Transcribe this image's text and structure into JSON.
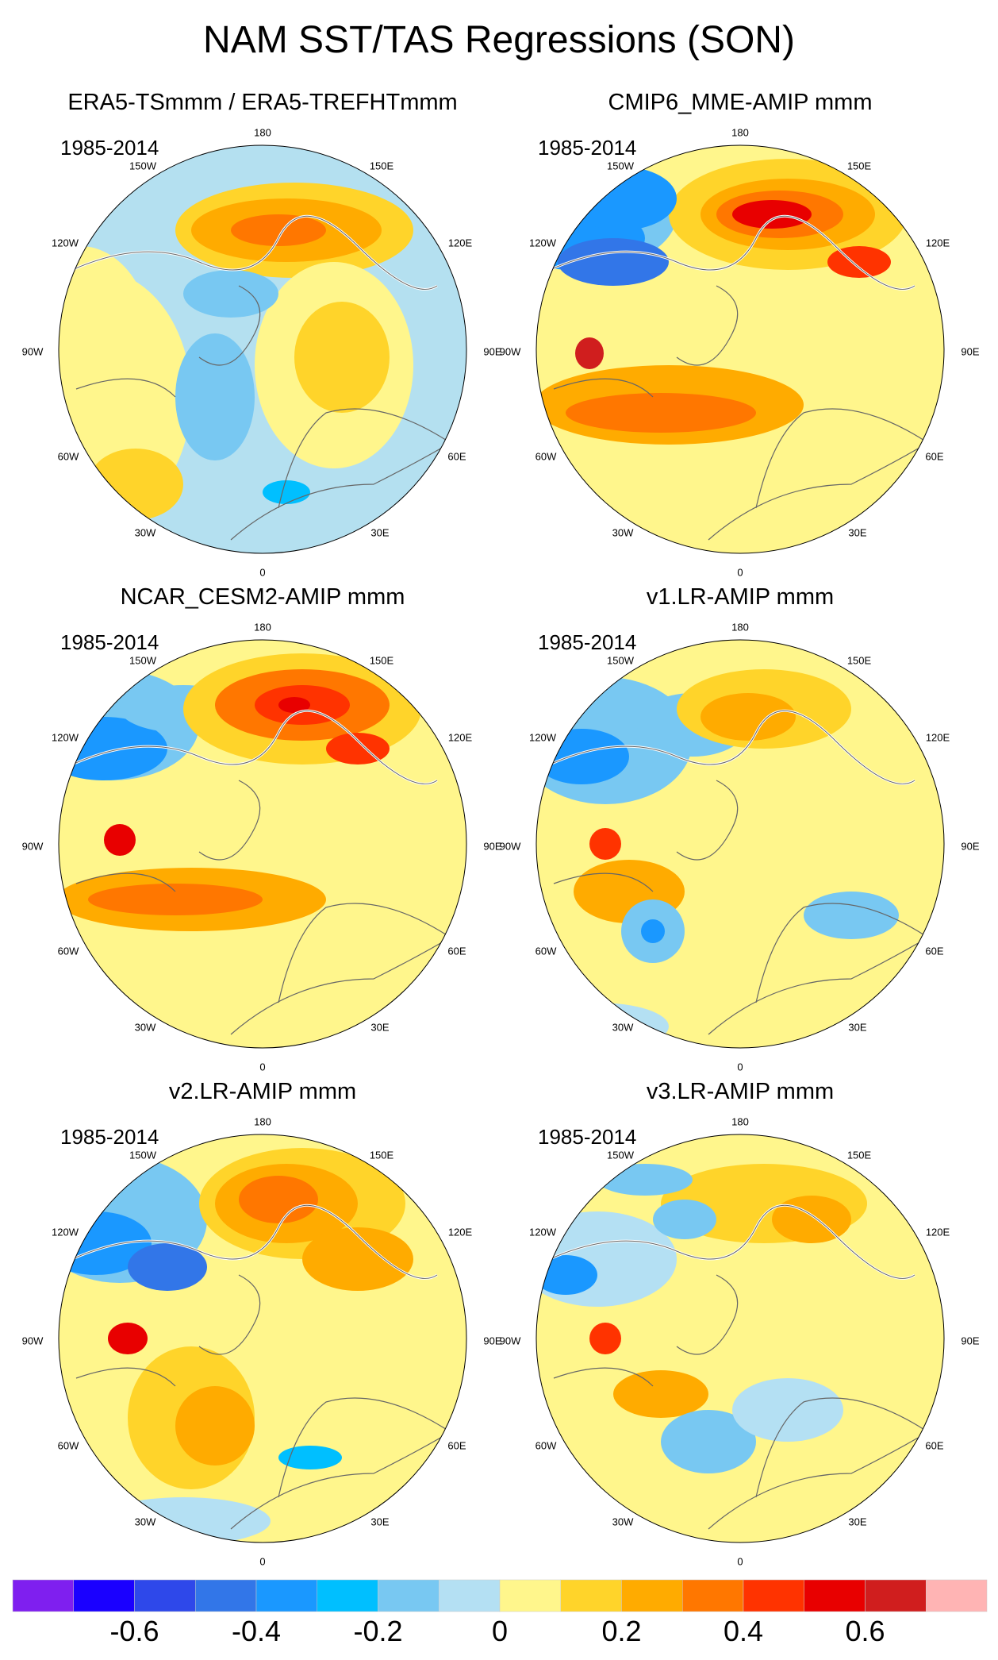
{
  "title": "NAM SST/TAS Regressions (SON)",
  "longitude_labels": [
    "180",
    "150W",
    "150E",
    "120W",
    "120E",
    "90W",
    "90E",
    "60W",
    "60E",
    "30W",
    "30E",
    "0"
  ],
  "panels": [
    {
      "title": "ERA5-TSmmm / ERA5-TREFHTmmm",
      "period": "1985-2014",
      "base_color": "#b4e0f0"
    },
    {
      "title": "CMIP6_MME-AMIP  mmm",
      "period": "1985-2014",
      "base_color": "#fff68c"
    },
    {
      "title": "NCAR_CESM2-AMIP  mmm",
      "period": "1985-2014",
      "base_color": "#fff68c"
    },
    {
      "title": "v1.LR-AMIP  mmm",
      "period": "1985-2014",
      "base_color": "#fff68c"
    },
    {
      "title": "v2.LR-AMIP  mmm",
      "period": "1985-2014",
      "base_color": "#fff68c"
    },
    {
      "title": "v3.LR-AMIP  mmm",
      "period": "1985-2014",
      "base_color": "#fff68c"
    }
  ],
  "colorbar": {
    "colors": [
      "#7f1fef",
      "#1a00ff",
      "#2e48ea",
      "#3276e8",
      "#1a98ff",
      "#00bfff",
      "#78c8f2",
      "#b4e0f3",
      "#fff68c",
      "#ffd42a",
      "#ffab00",
      "#ff7700",
      "#ff3300",
      "#e80000",
      "#d01e1e",
      "#ffb4b4"
    ],
    "tick_labels": [
      "-0.6",
      "-0.4",
      "-0.2",
      "0",
      "0.2",
      "0.4",
      "0.6"
    ]
  }
}
